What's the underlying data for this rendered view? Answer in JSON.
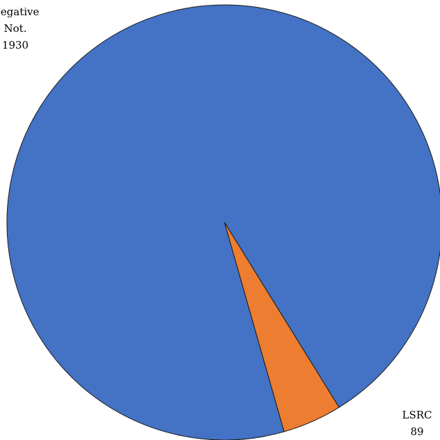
{
  "chart_data": {
    "type": "pie",
    "title": "",
    "slices": [
      {
        "label_lines": [
          "Negative",
          "Not.",
          "1930"
        ],
        "label": "Negative Not.",
        "value": 1930,
        "color": "#4472C4"
      },
      {
        "label_lines": [
          "LSRC",
          "89"
        ],
        "label": "LSRC",
        "value": 89,
        "color": "#ED7D31"
      }
    ],
    "legend": "none"
  }
}
